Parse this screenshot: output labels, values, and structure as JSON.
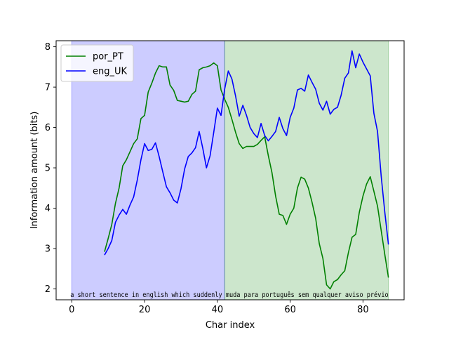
{
  "chart_data": {
    "type": "line",
    "xlabel": "Char index",
    "ylabel": "Information amount (bits)",
    "xlim": [
      -4.3,
      91.3
    ],
    "ylim": [
      1.73,
      8.15
    ],
    "xticks": [
      0,
      20,
      40,
      60,
      80
    ],
    "yticks": [
      2,
      3,
      4,
      5,
      6,
      7,
      8
    ],
    "grid": false,
    "legend_placement": "top-left",
    "regions": [
      {
        "x_start": 0,
        "x_end": 42,
        "color": "#0000ff",
        "opacity": 0.2
      },
      {
        "x_start": 42,
        "x_end": 87,
        "color": "#008000",
        "opacity": 0.2
      }
    ],
    "annotation": "a short sentence in english which suddenly muda para português sem qualquer aviso prévio",
    "annotation_y": 1.85,
    "series": [
      {
        "name": "por_PT",
        "color": "#008000",
        "x": [
          9,
          10,
          11,
          12,
          13,
          14,
          15,
          16,
          17,
          18,
          19,
          20,
          21,
          22,
          23,
          24,
          25,
          26,
          27,
          28,
          29,
          30,
          31,
          32,
          33,
          34,
          35,
          36,
          37,
          38,
          39,
          40,
          41,
          42,
          43,
          44,
          45,
          46,
          47,
          48,
          49,
          50,
          51,
          52,
          53,
          54,
          55,
          56,
          57,
          58,
          59,
          60,
          61,
          62,
          63,
          64,
          65,
          66,
          67,
          68,
          69,
          70,
          71,
          72,
          73,
          74,
          75,
          76,
          77,
          78,
          79,
          80,
          81,
          82,
          83,
          84,
          85,
          86,
          87
        ],
        "values": [
          2.92,
          3.25,
          3.6,
          4.12,
          4.5,
          5.05,
          5.2,
          5.4,
          5.6,
          5.72,
          6.22,
          6.3,
          6.88,
          7.1,
          7.35,
          7.53,
          7.5,
          7.5,
          7.05,
          6.92,
          6.67,
          6.65,
          6.63,
          6.65,
          6.82,
          6.9,
          7.43,
          7.48,
          7.5,
          7.53,
          7.6,
          7.53,
          6.93,
          6.7,
          6.5,
          6.2,
          5.88,
          5.6,
          5.48,
          5.53,
          5.53,
          5.53,
          5.58,
          5.68,
          5.77,
          5.3,
          4.88,
          4.3,
          3.85,
          3.82,
          3.6,
          3.85,
          4.0,
          4.5,
          4.77,
          4.72,
          4.5,
          4.15,
          3.75,
          3.12,
          2.75,
          2.1,
          2.0,
          2.18,
          2.23,
          2.35,
          2.45,
          2.9,
          3.28,
          3.35,
          3.9,
          4.3,
          4.6,
          4.78,
          4.42,
          4.05,
          3.45,
          2.85,
          2.28
        ]
      },
      {
        "name": "eng_UK",
        "color": "#0000ff",
        "x": [
          9,
          10,
          11,
          12,
          13,
          14,
          15,
          16,
          17,
          18,
          19,
          20,
          21,
          22,
          23,
          24,
          25,
          26,
          27,
          28,
          29,
          30,
          31,
          32,
          33,
          34,
          35,
          36,
          37,
          38,
          39,
          40,
          41,
          42,
          43,
          44,
          45,
          46,
          47,
          48,
          49,
          50,
          51,
          52,
          53,
          54,
          55,
          56,
          57,
          58,
          59,
          60,
          61,
          62,
          63,
          64,
          65,
          66,
          67,
          68,
          69,
          70,
          71,
          72,
          73,
          74,
          75,
          76,
          77,
          78,
          79,
          80,
          81,
          82,
          83,
          84,
          85,
          86,
          87
        ],
        "values": [
          2.84,
          3.0,
          3.2,
          3.65,
          3.83,
          3.97,
          3.85,
          4.08,
          4.28,
          4.7,
          5.2,
          5.6,
          5.43,
          5.46,
          5.62,
          5.28,
          4.9,
          4.53,
          4.38,
          4.2,
          4.13,
          4.48,
          4.97,
          5.28,
          5.37,
          5.5,
          5.9,
          5.48,
          5.0,
          5.3,
          5.88,
          6.48,
          6.3,
          6.95,
          7.4,
          7.2,
          6.78,
          6.28,
          6.55,
          6.3,
          6.0,
          5.85,
          5.75,
          6.1,
          5.8,
          5.67,
          5.78,
          5.9,
          6.25,
          5.97,
          5.8,
          6.25,
          6.48,
          6.93,
          6.97,
          6.9,
          7.3,
          7.12,
          6.95,
          6.6,
          6.43,
          6.65,
          6.33,
          6.45,
          6.5,
          6.8,
          7.22,
          7.35,
          7.9,
          7.48,
          7.82,
          7.62,
          7.45,
          7.28,
          6.35,
          5.9,
          4.8,
          3.9,
          3.1
        ]
      }
    ]
  }
}
